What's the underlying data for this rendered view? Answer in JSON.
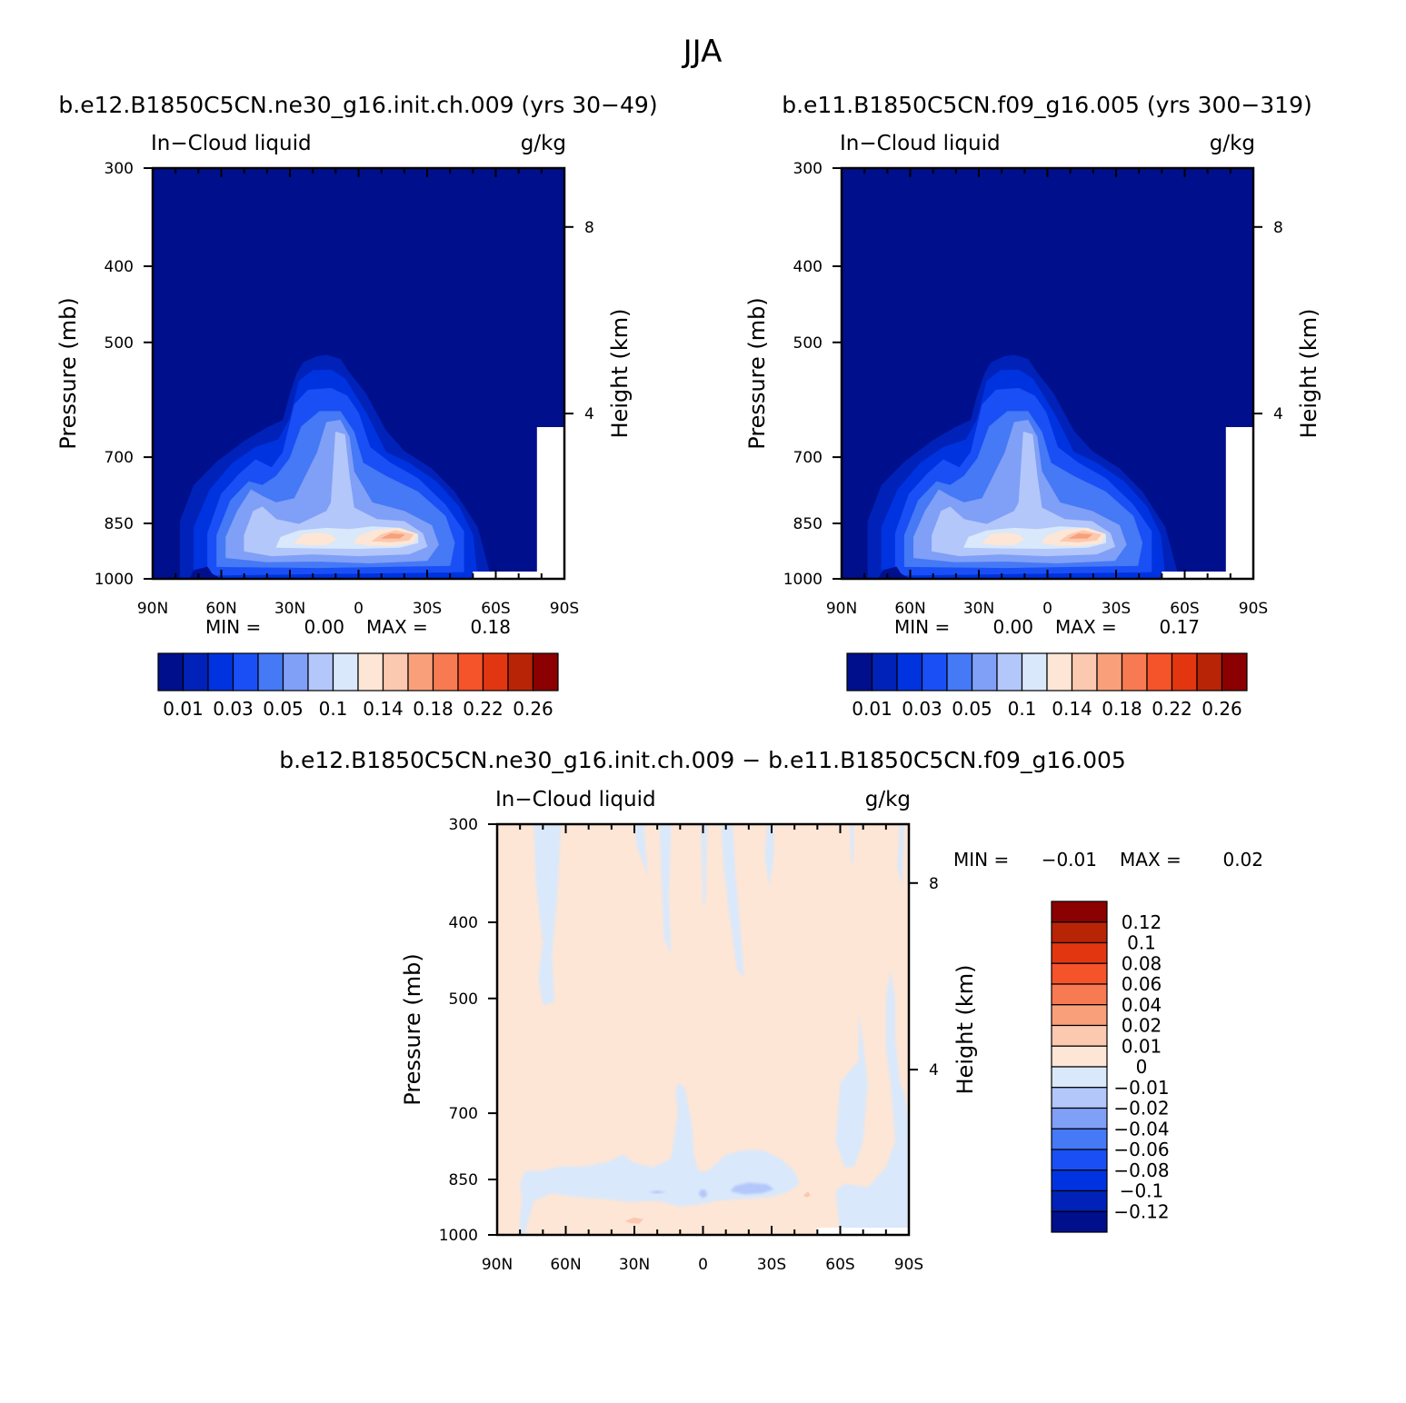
{
  "figure": {
    "title": "JJA",
    "diff_title": "b.e12.B1850C5CN.ne30_g16.init.ch.009 − b.e11.B1850C5CN.f09_g16.005"
  },
  "chart_data": [
    {
      "type": "heatmap",
      "subtype": "filled-contour latitude-pressure cross-section",
      "title": "b.e12.B1850C5CN.ne30_g16.init.ch.009 (yrs 30−49)",
      "left_label": "In−Cloud liquid",
      "right_label": "g/kg",
      "ylabel": "Pressure (mb)",
      "ylabel_right": "Height (km)",
      "x_ticks": [
        "90N",
        "60N",
        "30N",
        "0",
        "30S",
        "60S",
        "90S"
      ],
      "x_tick_values": [
        90,
        60,
        30,
        0,
        -30,
        -60,
        -90
      ],
      "y_ticks": [
        300,
        400,
        500,
        700,
        850,
        1000
      ],
      "y_right_ticks": [
        8,
        4
      ],
      "ylim": [
        1000,
        300
      ],
      "y_scale": "log",
      "xlim": [
        90,
        -90
      ],
      "min_label": "MIN =",
      "min_value": "0.00",
      "max_label": "MAX =",
      "max_value": "0.18",
      "contour_levels": [
        0.01,
        0.02,
        0.03,
        0.04,
        0.05,
        0.07,
        0.1,
        0.12,
        0.14,
        0.16,
        0.18,
        0.2,
        0.22,
        0.24,
        0.26
      ],
      "colorbar_labels": [
        "0.01",
        "0.03",
        "0.05",
        "0.1",
        "0.14",
        "0.18",
        "0.22",
        "0.26"
      ],
      "colorbar_colors": [
        "#000f8c",
        "#0022b8",
        "#0033e0",
        "#1a4ff5",
        "#4579f5",
        "#809ff7",
        "#b3c7fa",
        "#d9e8fb",
        "#fde6d6",
        "#fbc8b0",
        "#f9a07a",
        "#f77a52",
        "#f5532a",
        "#e23611",
        "#b82406",
        "#8b0000"
      ],
      "features": [
        {
          "lat": -14,
          "p": 868,
          "max": 0.18
        },
        {
          "lat": 18,
          "p": 870,
          "max": 0.12
        },
        {
          "lat": 5,
          "p": 640,
          "max": 0.07
        },
        {
          "lat": 45,
          "p": 730,
          "max": 0.05
        }
      ]
    },
    {
      "type": "heatmap",
      "subtype": "filled-contour latitude-pressure cross-section",
      "title": "b.e11.B1850C5CN.f09_g16.005 (yrs 300−319)",
      "left_label": "In−Cloud liquid",
      "right_label": "g/kg",
      "ylabel": "Pressure (mb)",
      "ylabel_right": "Height (km)",
      "x_ticks": [
        "90N",
        "60N",
        "30N",
        "0",
        "30S",
        "60S",
        "90S"
      ],
      "x_tick_values": [
        90,
        60,
        30,
        0,
        -30,
        -60,
        -90
      ],
      "y_ticks": [
        300,
        400,
        500,
        700,
        850,
        1000
      ],
      "y_right_ticks": [
        8,
        4
      ],
      "ylim": [
        1000,
        300
      ],
      "y_scale": "log",
      "xlim": [
        90,
        -90
      ],
      "min_label": "MIN =",
      "min_value": "0.00",
      "max_label": "MAX =",
      "max_value": "0.17",
      "contour_levels": [
        0.01,
        0.02,
        0.03,
        0.04,
        0.05,
        0.07,
        0.1,
        0.12,
        0.14,
        0.16,
        0.18,
        0.2,
        0.22,
        0.24,
        0.26
      ],
      "colorbar_labels": [
        "0.01",
        "0.03",
        "0.05",
        "0.1",
        "0.14",
        "0.18",
        "0.22",
        "0.26"
      ],
      "colorbar_colors": [
        "#000f8c",
        "#0022b8",
        "#0033e0",
        "#1a4ff5",
        "#4579f5",
        "#809ff7",
        "#b3c7fa",
        "#d9e8fb",
        "#fde6d6",
        "#fbc8b0",
        "#f9a07a",
        "#f77a52",
        "#f5532a",
        "#e23611",
        "#b82406",
        "#8b0000"
      ],
      "features": [
        {
          "lat": -12,
          "p": 868,
          "max": 0.17
        },
        {
          "lat": 20,
          "p": 872,
          "max": 0.12
        },
        {
          "lat": 6,
          "p": 640,
          "max": 0.07
        },
        {
          "lat": 46,
          "p": 730,
          "max": 0.05
        }
      ]
    },
    {
      "type": "heatmap",
      "subtype": "filled-contour difference cross-section",
      "left_label": "In−Cloud liquid",
      "right_label": "g/kg",
      "ylabel": "Pressure (mb)",
      "ylabel_right": "Height (km)",
      "x_ticks": [
        "90N",
        "60N",
        "30N",
        "0",
        "30S",
        "60S",
        "90S"
      ],
      "x_tick_values": [
        90,
        60,
        30,
        0,
        -30,
        -60,
        -90
      ],
      "y_ticks": [
        300,
        400,
        500,
        700,
        850,
        1000
      ],
      "y_right_ticks": [
        8,
        4
      ],
      "ylim": [
        1000,
        300
      ],
      "y_scale": "log",
      "xlim": [
        90,
        -90
      ],
      "min_label": "MIN =",
      "min_value": "−0.01",
      "max_label": "MAX =",
      "max_value": "0.02",
      "contour_levels": [
        -0.12,
        -0.1,
        -0.08,
        -0.06,
        -0.04,
        -0.02,
        -0.01,
        0,
        0.01,
        0.02,
        0.04,
        0.06,
        0.08,
        0.1,
        0.12
      ],
      "colorbar_labels": [
        "0.12",
        "0.1",
        "0.08",
        "0.06",
        "0.04",
        "0.02",
        "0.01",
        "0",
        "−0.01",
        "−0.02",
        "−0.04",
        "−0.06",
        "−0.08",
        "−0.1",
        "−0.12"
      ],
      "colorbar_colors": [
        "#8b0000",
        "#b82406",
        "#e23611",
        "#f5532a",
        "#f77a52",
        "#f9a07a",
        "#fbc8b0",
        "#fde6d6",
        "#d9e8fb",
        "#b3c7fa",
        "#809ff7",
        "#4579f5",
        "#1a4ff5",
        "#0033e0",
        "#0022b8",
        "#000f8c"
      ],
      "background_value_range": [
        -0.01,
        0
      ],
      "features": [
        {
          "lat": -14,
          "p": 870,
          "max": 0.02
        }
      ]
    }
  ]
}
